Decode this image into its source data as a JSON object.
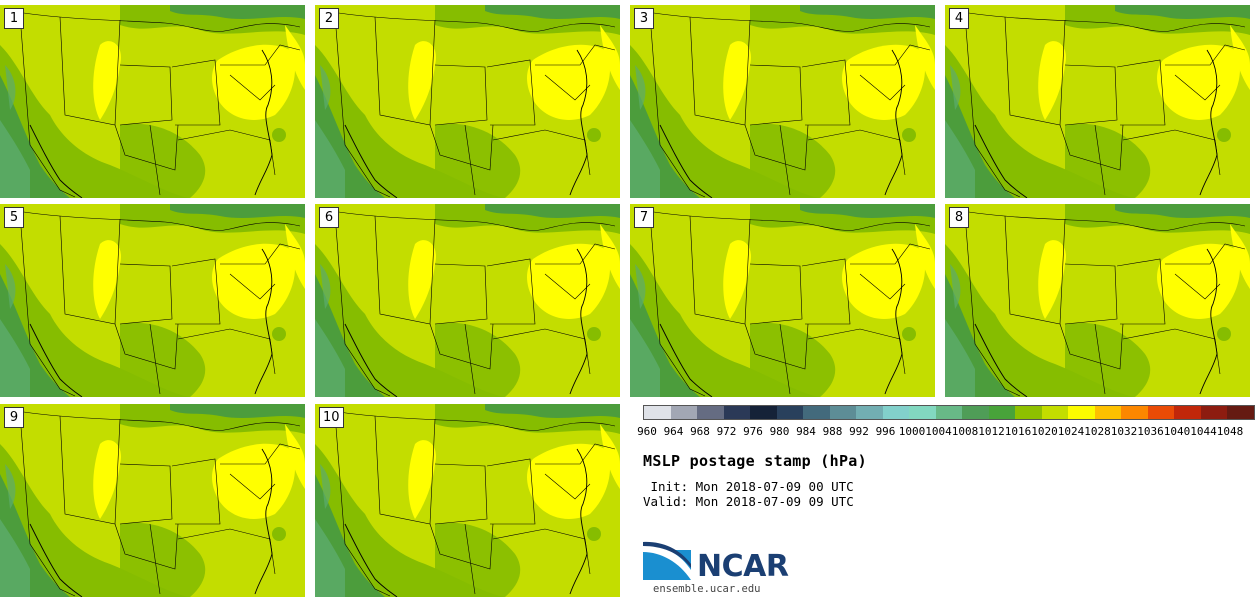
{
  "panels": [
    {
      "label": "1"
    },
    {
      "label": "2"
    },
    {
      "label": "3"
    },
    {
      "label": "4"
    },
    {
      "label": "5"
    },
    {
      "label": "6"
    },
    {
      "label": "7"
    },
    {
      "label": "8"
    },
    {
      "label": "9"
    },
    {
      "label": "10"
    }
  ],
  "colorbar": {
    "ticks": [
      "960",
      "964",
      "968",
      "972",
      "976",
      "980",
      "984",
      "988",
      "992",
      "996",
      "1000",
      "1004",
      "1008",
      "1012",
      "1016",
      "1020",
      "1024",
      "1028",
      "1032",
      "1036",
      "1040",
      "1044",
      "1048"
    ],
    "colors": [
      "#dfe2e8",
      "#a2a7b4",
      "#656c82",
      "#2b3957",
      "#152238",
      "#29405c",
      "#436a7c",
      "#5d8d96",
      "#72aeb2",
      "#82d0cb",
      "#82d8c0",
      "#68b987",
      "#4f9d57",
      "#48a33a",
      "#8ec000",
      "#c3dd00",
      "#fbfb00",
      "#fdc000",
      "#fc8700",
      "#ea4b06",
      "#c1270a",
      "#8d1c10",
      "#651a12"
    ]
  },
  "map_colors": {
    "deep": "#4c9d3c",
    "mid": "#86bd00",
    "light": "#c3dd00",
    "high": "#ffff00",
    "low": "#5cad6c"
  },
  "title": "MSLP postage stamp (hPa)",
  "init": "Init: Mon 2018-07-09 00 UTC",
  "valid": "Valid: Mon 2018-07-09 09 UTC",
  "logo": {
    "text": "NCAR",
    "url": "ensemble.ucar.edu"
  }
}
